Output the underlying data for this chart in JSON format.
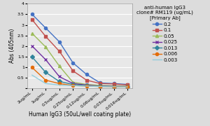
{
  "x_labels": [
    "2ug/mL",
    "1ug/mL",
    "0.5ug/mL",
    "0.25ug/mL",
    "0.12ug/mL",
    "0.06ug/mL",
    "0.03ug/mL",
    "0.016ug/mL"
  ],
  "series": [
    {
      "label": "0.2",
      "color": "#4472C4",
      "marker": "o",
      "markerface": "#4472C4",
      "values": [
        3.5,
        2.85,
        2.2,
        1.2,
        0.65,
        0.25,
        0.22,
        0.18
      ]
    },
    {
      "label": "0.1",
      "color": "#C0504D",
      "marker": "s",
      "markerface": "#C0504D",
      "values": [
        3.25,
        2.45,
        1.75,
        0.82,
        0.38,
        0.22,
        0.2,
        0.15
      ]
    },
    {
      "label": "0.05",
      "color": "#9BBB59",
      "marker": "^",
      "markerface": "#9BBB59",
      "values": [
        2.6,
        1.95,
        1.05,
        0.28,
        0.18,
        0.13,
        0.11,
        0.09
      ]
    },
    {
      "label": "0.025",
      "color": "#7030A0",
      "marker": "x",
      "markerface": "#7030A0",
      "values": [
        2.0,
        1.35,
        0.55,
        0.22,
        0.15,
        0.1,
        0.09,
        0.08
      ]
    },
    {
      "label": "0.013",
      "color": "#31849B",
      "marker": "D",
      "markerface": "#31849B",
      "values": [
        1.48,
        0.75,
        0.32,
        0.18,
        0.12,
        0.09,
        0.08,
        0.07
      ]
    },
    {
      "label": "0.006",
      "color": "#E36C09",
      "marker": "o",
      "markerface": "#E36C09",
      "values": [
        0.98,
        0.38,
        0.22,
        0.13,
        0.1,
        0.08,
        0.07,
        0.06
      ]
    },
    {
      "label": "0.003",
      "color": "#92CDDC",
      "marker": "none",
      "markerface": "#92CDDC",
      "values": [
        0.62,
        0.22,
        0.15,
        0.12,
        0.1,
        0.08,
        0.07,
        0.06
      ]
    }
  ],
  "xlabel": "Human IgG3 (50uL/well coating plate)",
  "ylabel": "Abs (405nm)",
  "legend_title": "anti-human IgG3\nclone# RM119 (ug/mL)\n[Primary Ab]",
  "ylim": [
    0,
    4
  ],
  "yticks": [
    0,
    0.5,
    1,
    1.5,
    2,
    2.5,
    3,
    3.5,
    4
  ],
  "ytick_labels": [
    "",
    "0.5",
    "1",
    "1.5",
    "2",
    "2.5",
    "3",
    "3.5",
    "4"
  ],
  "bg_color": "#DCDCDC",
  "plot_bg_color": "#E8E8E8",
  "grid_color": "#FFFFFF",
  "axis_fontsize": 5.5,
  "legend_fontsize": 5.0,
  "tick_fontsize": 4.5,
  "line_width": 1.0,
  "marker_size": 3.0
}
